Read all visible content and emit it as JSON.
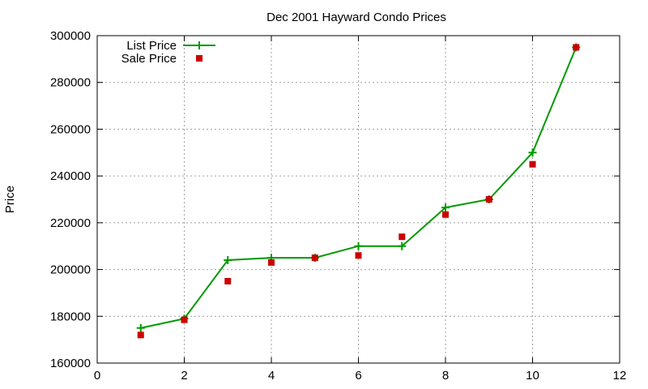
{
  "chart_data": {
    "type": "line",
    "title": "Dec 2001 Hayward Condo Prices",
    "xlabel": "",
    "ylabel": "Price",
    "xlim": [
      0,
      12
    ],
    "ylim": [
      160000,
      300000
    ],
    "xticks": [
      0,
      2,
      4,
      6,
      8,
      10,
      12
    ],
    "yticks": [
      160000,
      180000,
      200000,
      220000,
      240000,
      260000,
      280000,
      300000
    ],
    "grid": true,
    "legend_position": "top-left",
    "series": [
      {
        "name": "List Price",
        "style": "linespoints",
        "marker": "plus",
        "color": "#009900",
        "x": [
          1,
          2,
          3,
          4,
          5,
          6,
          7,
          8,
          9,
          10,
          11
        ],
        "y": [
          175000,
          179000,
          204000,
          205000,
          205000,
          210000,
          210000,
          226500,
          230000,
          250000,
          295000
        ]
      },
      {
        "name": "Sale Price",
        "style": "points",
        "marker": "square",
        "color": "#cc0000",
        "x": [
          1,
          2,
          3,
          4,
          5,
          6,
          7,
          8,
          9,
          10,
          11
        ],
        "y": [
          172000,
          178500,
          195000,
          203000,
          205000,
          206000,
          214000,
          223500,
          230000,
          245000,
          295000
        ]
      }
    ]
  }
}
